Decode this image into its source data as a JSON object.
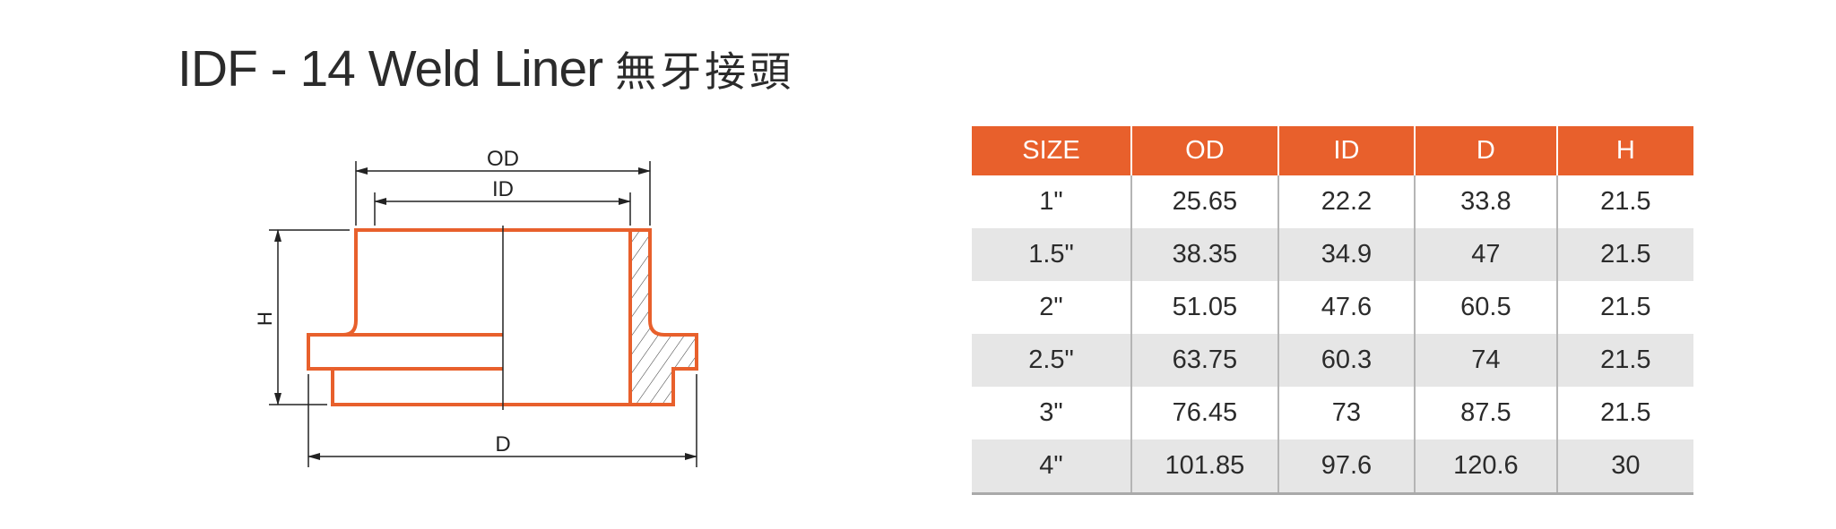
{
  "title": {
    "main": "IDF - 14 Weld Liner",
    "chinese": "無牙接頭"
  },
  "diagram": {
    "labels": {
      "od": "OD",
      "id": "ID",
      "h": "H",
      "d": "D"
    },
    "outline_color": "#E8602C"
  },
  "table": {
    "header_color": "#E8602C",
    "headers": [
      "SIZE",
      "OD",
      "ID",
      "D",
      "H"
    ],
    "rows": [
      [
        "1\"",
        "25.65",
        "22.2",
        "33.8",
        "21.5"
      ],
      [
        "1.5\"",
        "38.35",
        "34.9",
        "47",
        "21.5"
      ],
      [
        "2\"",
        "51.05",
        "47.6",
        "60.5",
        "21.5"
      ],
      [
        "2.5\"",
        "63.75",
        "60.3",
        "74",
        "21.5"
      ],
      [
        "3\"",
        "76.45",
        "73",
        "87.5",
        "21.5"
      ],
      [
        "4\"",
        "101.85",
        "97.6",
        "120.6",
        "30"
      ]
    ]
  }
}
